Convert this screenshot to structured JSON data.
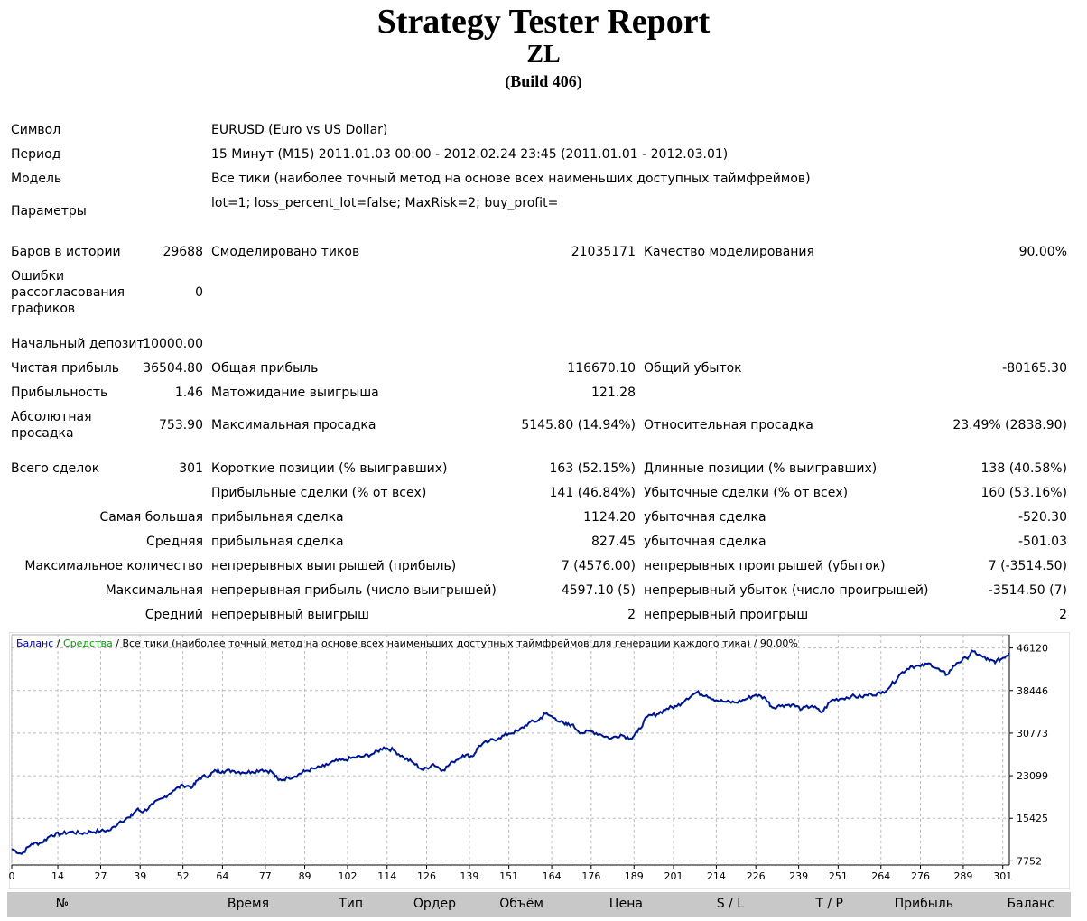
{
  "header": {
    "title": "Strategy Tester Report",
    "subtitle": "ZL",
    "build": "(Build 406)"
  },
  "info": {
    "symbol_label": "Символ",
    "symbol_value": "EURUSD (Euro vs US Dollar)",
    "period_label": "Период",
    "period_value": "15 Минут (M15) 2011.01.03 00:00 - 2012.02.24 23:45 (2011.01.01 - 2012.03.01)",
    "model_label": "Модель",
    "model_value": "Все тики (наиболее точный метод на основе всех наименьших доступных таймфреймов)",
    "params_label": "Параметры",
    "params_value": "lot=1; loss_percent_lot=false; MaxRisk=2; buy_profit="
  },
  "stats": {
    "bars_label": "Баров в истории",
    "bars_value": "29688",
    "ticks_label": "Смоделировано тиков",
    "ticks_value": "21035171",
    "quality_label": "Качество моделирования",
    "quality_value": "90.00%",
    "mismatch_line1": "Ошибки",
    "mismatch_line2": "рассогласования",
    "mismatch_line3": "графиков",
    "mismatch_value": "0",
    "deposit_label": "Начальный депозит",
    "deposit_value": "10000.00",
    "net_label": "Чистая прибыль",
    "net_value": "36504.80",
    "gross_profit_label": "Общая прибыль",
    "gross_profit_value": "116670.10",
    "gross_loss_label": "Общий убыток",
    "gross_loss_value": "-80165.30",
    "pf_label": "Прибыльность",
    "pf_value": "1.46",
    "exp_label": "Матожидание выигрыша",
    "exp_value": "121.28",
    "abs_dd_line1": "Абсолютная",
    "abs_dd_line2": "просадка",
    "abs_dd_value": "753.90",
    "max_dd_label": "Максимальная просадка",
    "max_dd_value": "5145.80 (14.94%)",
    "rel_dd_label": "Относительная просадка",
    "rel_dd_value": "23.49% (2838.90)",
    "total_label": "Всего сделок",
    "total_value": "301",
    "short_label": "Короткие позиции (% выигравших)",
    "short_value": "163 (52.15%)",
    "long_label": "Длинные позиции (% выигравших)",
    "long_value": "138 (40.58%)",
    "win_label": "Прибыльные сделки (% от всех)",
    "win_value": "141 (46.84%)",
    "lose_label": "Убыточные сделки (% от всех)",
    "lose_value": "160 (53.16%)",
    "largest_label": "Самая большая",
    "largest_win_label": "прибыльная сделка",
    "largest_win_value": "1124.20",
    "largest_loss_label": "убыточная сделка",
    "largest_loss_value": "-520.30",
    "avg_label": "Средняя",
    "avg_win_label": "прибыльная сделка",
    "avg_win_value": "827.45",
    "avg_loss_label": "убыточная сделка",
    "avg_loss_value": "-501.03",
    "maxcnt_label": "Максимальное количество",
    "maxcnt_win_label": "непрерывных выигрышей (прибыль)",
    "maxcnt_win_value": "7 (4576.00)",
    "maxcnt_loss_label": "непрерывных проигрышей (убыток)",
    "maxcnt_loss_value": "7 (-3514.50)",
    "max_label": "Максимальная",
    "max_win_label": "непрерывная прибыль (число выигрышей)",
    "max_win_value": "4597.10 (5)",
    "max_loss_label": "непрерывный убыток (число проигрышей)",
    "max_loss_value": "-3514.50 (7)",
    "avgcons_label": "Средний",
    "avgcons_win_label": "непрерывный выигрыш",
    "avgcons_win_value": "2",
    "avgcons_loss_label": "непрерывный проигрыш",
    "avgcons_loss_value": "2"
  },
  "chart_data": {
    "type": "line",
    "legend": {
      "balance": "Баланс",
      "sep1": " / ",
      "equity": "Средства",
      "sep2": " / ",
      "rest": "Все тики (наиболее точный метод на основе всех наименьших доступных таймфреймов для генерации каждого тика) / 90.00%"
    },
    "x_ticks": [
      "0",
      "14",
      "27",
      "39",
      "52",
      "64",
      "77",
      "89",
      "102",
      "114",
      "126",
      "139",
      "151",
      "164",
      "176",
      "189",
      "201",
      "214",
      "226",
      "239",
      "251",
      "264",
      "276",
      "289",
      "301"
    ],
    "y_ticks": [
      "46120",
      "38446",
      "30773",
      "23099",
      "15425",
      "7752"
    ],
    "x_range": [
      0,
      303
    ],
    "y_range": [
      7000,
      48500
    ],
    "balance_color": "#0000aa",
    "equity_color": "#00a000",
    "series": [
      {
        "name": "Баланс",
        "points": [
          [
            0,
            9900
          ],
          [
            3,
            9000
          ],
          [
            6,
            10800
          ],
          [
            9,
            11000
          ],
          [
            12,
            12400
          ],
          [
            15,
            12600
          ],
          [
            18,
            13000
          ],
          [
            21,
            12700
          ],
          [
            24,
            13000
          ],
          [
            27,
            13100
          ],
          [
            30,
            13300
          ],
          [
            33,
            14900
          ],
          [
            36,
            15600
          ],
          [
            38,
            17000
          ],
          [
            40,
            16600
          ],
          [
            43,
            18000
          ],
          [
            46,
            19100
          ],
          [
            49,
            20400
          ],
          [
            52,
            21400
          ],
          [
            55,
            21100
          ],
          [
            57,
            22700
          ],
          [
            60,
            23200
          ],
          [
            62,
            24000
          ],
          [
            64,
            23900
          ],
          [
            67,
            24000
          ],
          [
            70,
            23700
          ],
          [
            73,
            23800
          ],
          [
            76,
            24200
          ],
          [
            79,
            23800
          ],
          [
            81,
            22300
          ],
          [
            84,
            22700
          ],
          [
            87,
            23300
          ],
          [
            89,
            23900
          ],
          [
            92,
            24400
          ],
          [
            95,
            24800
          ],
          [
            98,
            25700
          ],
          [
            101,
            25900
          ],
          [
            104,
            26400
          ],
          [
            107,
            26600
          ],
          [
            110,
            27100
          ],
          [
            113,
            28200
          ],
          [
            116,
            27700
          ],
          [
            119,
            26400
          ],
          [
            122,
            25400
          ],
          [
            125,
            24100
          ],
          [
            128,
            25200
          ],
          [
            131,
            24100
          ],
          [
            134,
            25600
          ],
          [
            137,
            26800
          ],
          [
            140,
            26600
          ],
          [
            142,
            28500
          ],
          [
            145,
            29300
          ],
          [
            148,
            29900
          ],
          [
            151,
            30700
          ],
          [
            154,
            31200
          ],
          [
            157,
            32600
          ],
          [
            160,
            33100
          ],
          [
            162,
            34300
          ],
          [
            165,
            33500
          ],
          [
            168,
            32300
          ],
          [
            170,
            32300
          ],
          [
            173,
            30800
          ],
          [
            176,
            31100
          ],
          [
            179,
            30500
          ],
          [
            182,
            29800
          ],
          [
            185,
            30500
          ],
          [
            188,
            29800
          ],
          [
            190,
            30900
          ],
          [
            193,
            33700
          ],
          [
            196,
            34200
          ],
          [
            199,
            35200
          ],
          [
            202,
            35600
          ],
          [
            205,
            37000
          ],
          [
            208,
            38100
          ],
          [
            211,
            37600
          ],
          [
            214,
            36700
          ],
          [
            217,
            36400
          ],
          [
            220,
            36300
          ],
          [
            223,
            36900
          ],
          [
            226,
            37700
          ],
          [
            229,
            37000
          ],
          [
            231,
            35400
          ],
          [
            234,
            35800
          ],
          [
            237,
            35900
          ],
          [
            240,
            35100
          ],
          [
            243,
            35700
          ],
          [
            246,
            34500
          ],
          [
            249,
            36700
          ],
          [
            252,
            37000
          ],
          [
            255,
            37400
          ],
          [
            258,
            37300
          ],
          [
            261,
            37800
          ],
          [
            264,
            37900
          ],
          [
            267,
            39300
          ],
          [
            270,
            41500
          ],
          [
            273,
            42800
          ],
          [
            276,
            42800
          ],
          [
            279,
            43300
          ],
          [
            282,
            42000
          ],
          [
            284,
            41300
          ],
          [
            287,
            43400
          ],
          [
            290,
            44300
          ],
          [
            292,
            45500
          ],
          [
            295,
            44500
          ],
          [
            297,
            43800
          ],
          [
            299,
            43700
          ],
          [
            301,
            44300
          ],
          [
            303,
            45200
          ]
        ]
      }
    ]
  },
  "table_header": [
    "№",
    "Время",
    "Тип",
    "Ордер",
    "Объём",
    "Цена",
    "S / L",
    "T / P",
    "Прибыль",
    "Баланс"
  ]
}
